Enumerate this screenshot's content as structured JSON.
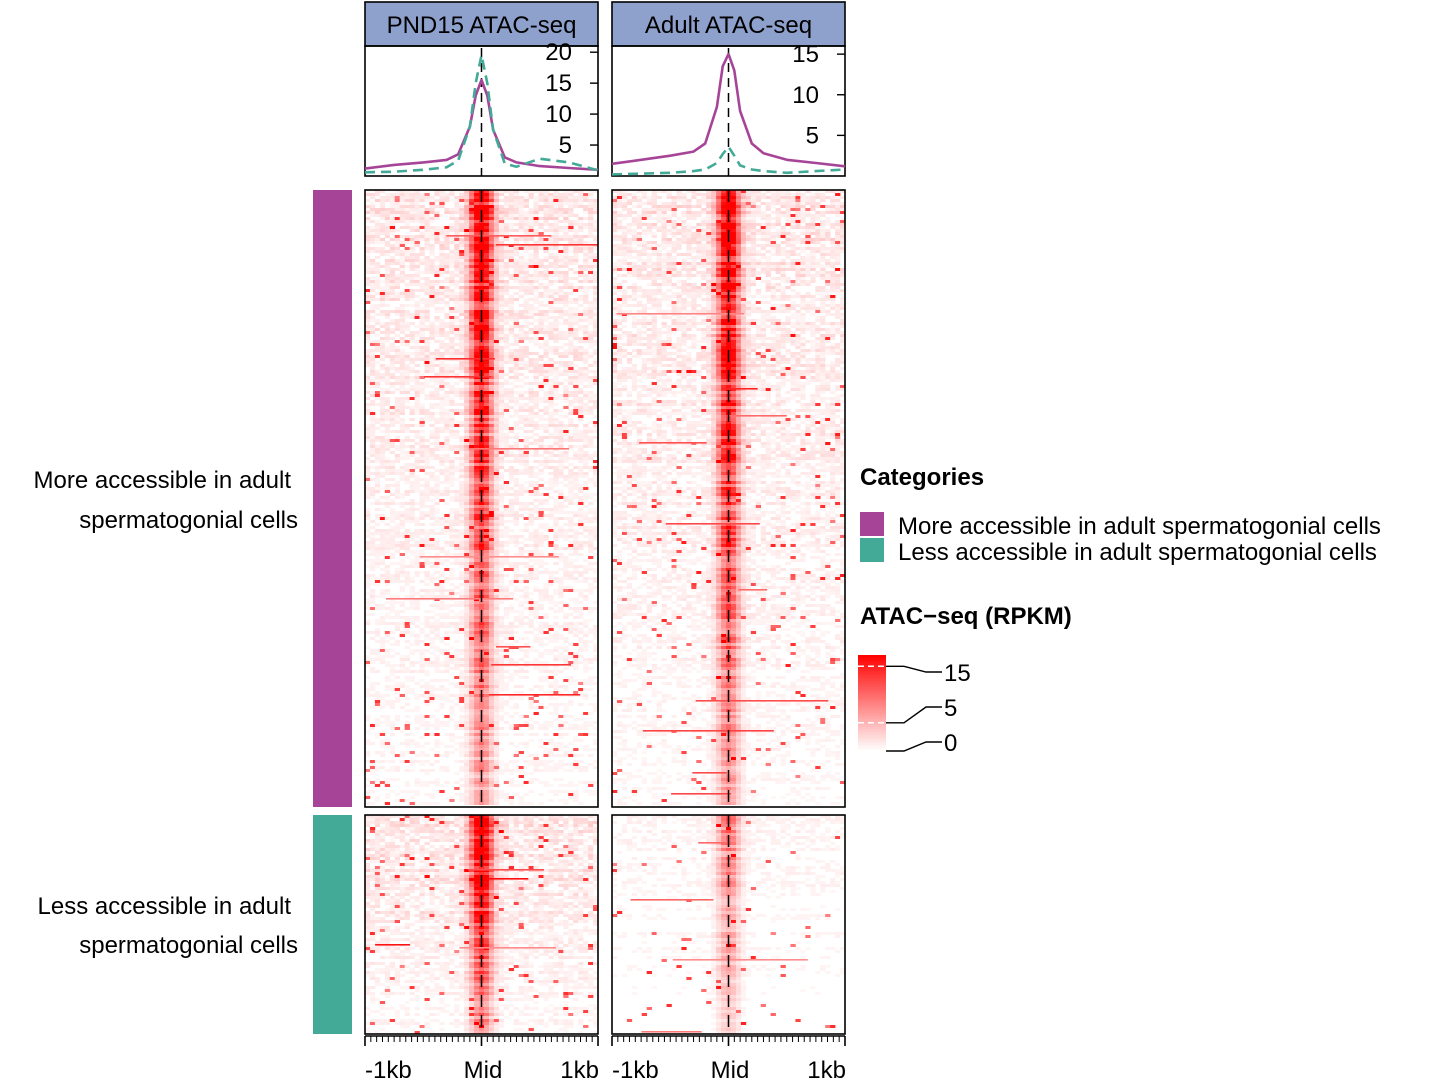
{
  "chart_data": {
    "type": "heatmap",
    "panels": [
      {
        "title": "PND15 ATAC-seq",
        "profile_yticks": [
          5,
          10,
          15,
          20
        ],
        "profile_ylim": [
          0,
          21
        ],
        "profile": {
          "x": [
            -1000,
            -750,
            -500,
            -300,
            -200,
            -100,
            -50,
            0,
            50,
            100,
            200,
            300,
            500,
            750,
            1000
          ],
          "series": [
            {
              "category": "More accessible in adult spermatogonial cells",
              "color": "#a64598",
              "dash": "solid",
              "values": [
                1.2,
                1.8,
                2.2,
                2.6,
                3.5,
                8.0,
                13.0,
                15.5,
                13.0,
                7.5,
                3.0,
                2.2,
                1.6,
                1.3,
                1.0
              ]
            },
            {
              "category": "Less accessible in adult spermatogonial cells",
              "color": "#43aa98",
              "dash": "dashed",
              "values": [
                0.6,
                0.7,
                1.0,
                1.4,
                2.5,
                8.0,
                15.0,
                19.5,
                15.0,
                7.5,
                2.0,
                1.5,
                2.8,
                2.2,
                0.9
              ]
            }
          ]
        },
        "heatmap_seed": 11,
        "heatmap_strength": {
          "More accessible in adult spermatogonial cells": 1.0,
          "Less accessible in adult spermatogonial cells": 1.15
        }
      },
      {
        "title": "Adult ATAC-seq",
        "profile_yticks": [
          5,
          10,
          15
        ],
        "profile_ylim": [
          0,
          16
        ],
        "profile": {
          "x": [
            -1000,
            -750,
            -500,
            -300,
            -200,
            -100,
            -50,
            0,
            50,
            100,
            200,
            300,
            500,
            750,
            1000
          ],
          "series": [
            {
              "category": "More accessible in adult spermatogonial cells",
              "color": "#a64598",
              "dash": "solid",
              "values": [
                1.5,
                2.0,
                2.5,
                3.0,
                4.0,
                8.5,
                13.5,
                15.0,
                13.0,
                8.0,
                4.0,
                2.8,
                2.0,
                1.6,
                1.2
              ]
            },
            {
              "category": "Less accessible in adult spermatogonial cells",
              "color": "#43aa98",
              "dash": "dashed",
              "values": [
                0.2,
                0.3,
                0.4,
                0.6,
                0.8,
                1.6,
                2.7,
                3.6,
                2.5,
                1.3,
                0.8,
                0.6,
                0.4,
                0.6,
                0.8
              ]
            }
          ]
        },
        "heatmap_seed": 29,
        "heatmap_strength": {
          "More accessible in adult spermatogonial cells": 1.0,
          "Less accessible in adult spermatogonial cells": 0.45
        }
      }
    ],
    "row_groups": [
      {
        "label_lines": [
          "More accessible in adult",
          "spermatogonial cells"
        ],
        "color": "#a64598",
        "relative_rows": 0.74
      },
      {
        "label_lines": [
          "Less accessible in adult",
          "spermatogonial cells"
        ],
        "color": "#43aa98",
        "relative_rows": 0.26
      }
    ],
    "x_axis": {
      "ticks": [
        "-1kb",
        "Mid",
        "1kb"
      ],
      "range": [
        -1000,
        1000
      ]
    },
    "legend_categories": {
      "title": "Categories",
      "items": [
        {
          "label": "More accessible in adult spermatogonial cells",
          "color": "#a64598"
        },
        {
          "label": "Less accessible in adult spermatogonial cells",
          "color": "#43aa98"
        }
      ]
    },
    "legend_color": {
      "title": "ATAC−seq (RPKM)",
      "ticks": [
        {
          "value": 15,
          "label": "15"
        },
        {
          "value": 5,
          "label": "5"
        },
        {
          "value": 0,
          "label": "0"
        }
      ],
      "scale": [
        0,
        17
      ],
      "colors": [
        "#ffffff",
        "#ff0000"
      ]
    }
  }
}
